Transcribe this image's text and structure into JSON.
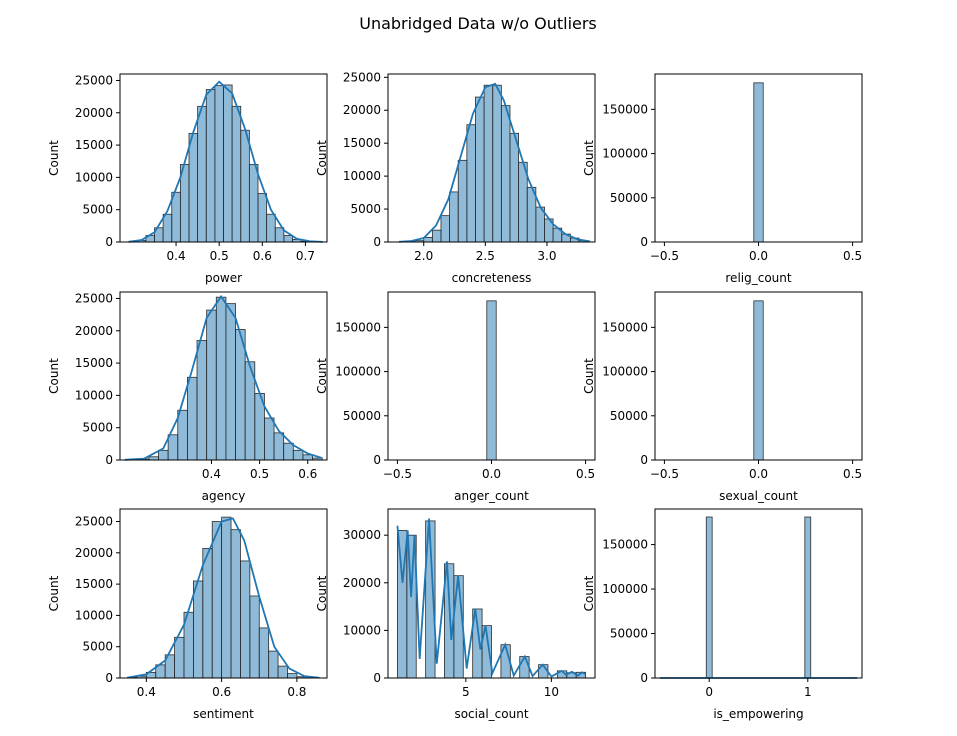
{
  "title": "Unabridged Data w/o Outliers",
  "chart_data": [
    {
      "type": "histogram",
      "xlabel": "power",
      "ylabel": "Count",
      "xlim": [
        0.27,
        0.75
      ],
      "ylim": [
        0,
        26000
      ],
      "xticks": [
        {
          "v": 0.4,
          "label": "0.4"
        },
        {
          "v": 0.5,
          "label": "0.5"
        },
        {
          "v": 0.6,
          "label": "0.6"
        },
        {
          "v": 0.7,
          "label": "0.7"
        }
      ],
      "yticks": [
        {
          "v": 0,
          "label": "0"
        },
        {
          "v": 5000,
          "label": "5000"
        },
        {
          "v": 10000,
          "label": "10000"
        },
        {
          "v": 15000,
          "label": "15000"
        },
        {
          "v": 20000,
          "label": "20000"
        },
        {
          "v": 25000,
          "label": "25000"
        }
      ],
      "bins": [
        [
          0.29,
          0.31,
          50
        ],
        [
          0.31,
          0.33,
          250
        ],
        [
          0.33,
          0.35,
          1000
        ],
        [
          0.35,
          0.37,
          2200
        ],
        [
          0.37,
          0.39,
          4300
        ],
        [
          0.39,
          0.41,
          7700
        ],
        [
          0.41,
          0.43,
          12000
        ],
        [
          0.43,
          0.45,
          16800
        ],
        [
          0.45,
          0.47,
          21000
        ],
        [
          0.47,
          0.49,
          23600
        ],
        [
          0.49,
          0.51,
          24200
        ],
        [
          0.51,
          0.53,
          24300
        ],
        [
          0.53,
          0.55,
          21000
        ],
        [
          0.55,
          0.57,
          17300
        ],
        [
          0.57,
          0.59,
          12000
        ],
        [
          0.59,
          0.61,
          7500
        ],
        [
          0.61,
          0.63,
          4300
        ],
        [
          0.63,
          0.65,
          2200
        ],
        [
          0.65,
          0.67,
          1000
        ],
        [
          0.67,
          0.69,
          400
        ],
        [
          0.69,
          0.71,
          100
        ],
        [
          0.71,
          0.73,
          30
        ]
      ],
      "kde": [
        [
          0.29,
          30
        ],
        [
          0.32,
          300
        ],
        [
          0.35,
          1500
        ],
        [
          0.38,
          4800
        ],
        [
          0.41,
          10000
        ],
        [
          0.44,
          17000
        ],
        [
          0.47,
          22800
        ],
        [
          0.5,
          24800
        ],
        [
          0.53,
          23000
        ],
        [
          0.56,
          17500
        ],
        [
          0.59,
          10500
        ],
        [
          0.62,
          5000
        ],
        [
          0.65,
          1800
        ],
        [
          0.68,
          500
        ],
        [
          0.71,
          120
        ],
        [
          0.74,
          20
        ]
      ]
    },
    {
      "type": "histogram",
      "xlabel": "concreteness",
      "ylabel": "Count",
      "xlim": [
        1.71,
        3.39
      ],
      "ylim": [
        0,
        25500
      ],
      "xticks": [
        {
          "v": 2.0,
          "label": "2.0"
        },
        {
          "v": 2.5,
          "label": "2.5"
        },
        {
          "v": 3.0,
          "label": "3.0"
        }
      ],
      "yticks": [
        {
          "v": 0,
          "label": "0"
        },
        {
          "v": 5000,
          "label": "5000"
        },
        {
          "v": 10000,
          "label": "10000"
        },
        {
          "v": 15000,
          "label": "15000"
        },
        {
          "v": 20000,
          "label": "20000"
        },
        {
          "v": 25000,
          "label": "25000"
        }
      ],
      "bins": [
        [
          1.86,
          1.93,
          50
        ],
        [
          1.93,
          2.0,
          200
        ],
        [
          2.0,
          2.07,
          700
        ],
        [
          2.07,
          2.14,
          1800
        ],
        [
          2.14,
          2.21,
          4000
        ],
        [
          2.21,
          2.28,
          7600
        ],
        [
          2.28,
          2.35,
          12400
        ],
        [
          2.35,
          2.42,
          17800
        ],
        [
          2.42,
          2.49,
          22000
        ],
        [
          2.49,
          2.56,
          23800
        ],
        [
          2.56,
          2.63,
          23800
        ],
        [
          2.63,
          2.7,
          20700
        ],
        [
          2.7,
          2.77,
          16500
        ],
        [
          2.77,
          2.84,
          12100
        ],
        [
          2.84,
          2.91,
          8300
        ],
        [
          2.91,
          2.98,
          5300
        ],
        [
          2.98,
          3.05,
          3500
        ],
        [
          3.05,
          3.12,
          2100
        ],
        [
          3.12,
          3.19,
          1200
        ],
        [
          3.19,
          3.26,
          600
        ],
        [
          3.26,
          3.33,
          200
        ]
      ],
      "kde": [
        [
          1.8,
          30
        ],
        [
          1.9,
          150
        ],
        [
          2.0,
          600
        ],
        [
          2.1,
          2500
        ],
        [
          2.2,
          6500
        ],
        [
          2.3,
          13000
        ],
        [
          2.4,
          19500
        ],
        [
          2.5,
          23500
        ],
        [
          2.58,
          24000
        ],
        [
          2.65,
          21500
        ],
        [
          2.75,
          15500
        ],
        [
          2.85,
          9500
        ],
        [
          2.95,
          5200
        ],
        [
          3.05,
          2700
        ],
        [
          3.15,
          1200
        ],
        [
          3.25,
          400
        ],
        [
          3.35,
          100
        ]
      ]
    },
    {
      "type": "histogram",
      "xlabel": "relig_count",
      "ylabel": "Count",
      "xlim": [
        -0.55,
        0.55
      ],
      "ylim": [
        0,
        190000
      ],
      "xticks": [
        {
          "v": -0.5,
          "label": "−0.5"
        },
        {
          "v": 0.0,
          "label": "0.0"
        },
        {
          "v": 0.5,
          "label": "0.5"
        }
      ],
      "yticks": [
        {
          "v": 0,
          "label": "0"
        },
        {
          "v": 50000,
          "label": "50000"
        },
        {
          "v": 100000,
          "label": "100000"
        },
        {
          "v": 150000,
          "label": "150000"
        }
      ],
      "bins": [
        [
          -0.025,
          0.025,
          180000
        ]
      ],
      "kde": []
    },
    {
      "type": "histogram",
      "xlabel": "agency",
      "ylabel": "Count",
      "xlim": [
        0.21,
        0.64
      ],
      "ylim": [
        0,
        26000
      ],
      "xticks": [
        {
          "v": 0.4,
          "label": "0.4"
        },
        {
          "v": 0.5,
          "label": "0.5"
        },
        {
          "v": 0.6,
          "label": "0.6"
        }
      ],
      "yticks": [
        {
          "v": 0,
          "label": "0"
        },
        {
          "v": 5000,
          "label": "5000"
        },
        {
          "v": 10000,
          "label": "10000"
        },
        {
          "v": 15000,
          "label": "15000"
        },
        {
          "v": 20000,
          "label": "20000"
        },
        {
          "v": 25000,
          "label": "25000"
        }
      ],
      "bins": [
        [
          0.23,
          0.25,
          50
        ],
        [
          0.25,
          0.27,
          150
        ],
        [
          0.27,
          0.29,
          500
        ],
        [
          0.29,
          0.31,
          1500
        ],
        [
          0.31,
          0.33,
          3900
        ],
        [
          0.33,
          0.35,
          7700
        ],
        [
          0.35,
          0.37,
          12800
        ],
        [
          0.37,
          0.39,
          18500
        ],
        [
          0.39,
          0.41,
          23200
        ],
        [
          0.41,
          0.43,
          25200
        ],
        [
          0.43,
          0.45,
          24200
        ],
        [
          0.45,
          0.47,
          20200
        ],
        [
          0.47,
          0.49,
          15200
        ],
        [
          0.49,
          0.51,
          10300
        ],
        [
          0.51,
          0.53,
          6500
        ],
        [
          0.53,
          0.55,
          4200
        ],
        [
          0.55,
          0.57,
          2600
        ],
        [
          0.57,
          0.59,
          1500
        ],
        [
          0.59,
          0.61,
          800
        ],
        [
          0.61,
          0.63,
          300
        ]
      ],
      "kde": [
        [
          0.22,
          30
        ],
        [
          0.26,
          200
        ],
        [
          0.3,
          1800
        ],
        [
          0.33,
          6500
        ],
        [
          0.36,
          14000
        ],
        [
          0.39,
          22000
        ],
        [
          0.42,
          25300
        ],
        [
          0.45,
          22000
        ],
        [
          0.48,
          14500
        ],
        [
          0.51,
          8300
        ],
        [
          0.54,
          4500
        ],
        [
          0.57,
          2300
        ],
        [
          0.6,
          1000
        ],
        [
          0.63,
          300
        ]
      ]
    },
    {
      "type": "histogram",
      "xlabel": "anger_count",
      "ylabel": "Count",
      "xlim": [
        -0.55,
        0.55
      ],
      "ylim": [
        0,
        190000
      ],
      "xticks": [
        {
          "v": -0.5,
          "label": "−0.5"
        },
        {
          "v": 0.0,
          "label": "0.0"
        },
        {
          "v": 0.5,
          "label": "0.5"
        }
      ],
      "yticks": [
        {
          "v": 0,
          "label": "0"
        },
        {
          "v": 50000,
          "label": "50000"
        },
        {
          "v": 100000,
          "label": "100000"
        },
        {
          "v": 150000,
          "label": "150000"
        }
      ],
      "bins": [
        [
          -0.025,
          0.025,
          180000
        ]
      ],
      "kde": []
    },
    {
      "type": "histogram",
      "xlabel": "sexual_count",
      "ylabel": "Count",
      "xlim": [
        -0.55,
        0.55
      ],
      "ylim": [
        0,
        190000
      ],
      "xticks": [
        {
          "v": -0.5,
          "label": "−0.5"
        },
        {
          "v": 0.0,
          "label": "0.0"
        },
        {
          "v": 0.5,
          "label": "0.5"
        }
      ],
      "yticks": [
        {
          "v": 0,
          "label": "0"
        },
        {
          "v": 50000,
          "label": "50000"
        },
        {
          "v": 100000,
          "label": "100000"
        },
        {
          "v": 150000,
          "label": "150000"
        }
      ],
      "bins": [
        [
          -0.025,
          0.025,
          180000
        ]
      ],
      "kde": []
    },
    {
      "type": "histogram",
      "xlabel": "sentiment",
      "ylabel": "Count",
      "xlim": [
        0.33,
        0.88
      ],
      "ylim": [
        0,
        27000
      ],
      "xticks": [
        {
          "v": 0.4,
          "label": "0.4"
        },
        {
          "v": 0.6,
          "label": "0.6"
        },
        {
          "v": 0.8,
          "label": "0.8"
        }
      ],
      "yticks": [
        {
          "v": 0,
          "label": "0"
        },
        {
          "v": 5000,
          "label": "5000"
        },
        {
          "v": 10000,
          "label": "10000"
        },
        {
          "v": 15000,
          "label": "15000"
        },
        {
          "v": 20000,
          "label": "20000"
        },
        {
          "v": 25000,
          "label": "25000"
        }
      ],
      "bins": [
        [
          0.35,
          0.375,
          100
        ],
        [
          0.375,
          0.4,
          300
        ],
        [
          0.4,
          0.425,
          900
        ],
        [
          0.425,
          0.45,
          2100
        ],
        [
          0.45,
          0.475,
          3700
        ],
        [
          0.475,
          0.5,
          6500
        ],
        [
          0.5,
          0.525,
          10500
        ],
        [
          0.525,
          0.55,
          15500
        ],
        [
          0.55,
          0.575,
          20700
        ],
        [
          0.575,
          0.6,
          25000
        ],
        [
          0.6,
          0.625,
          25700
        ],
        [
          0.625,
          0.65,
          23700
        ],
        [
          0.65,
          0.675,
          18700
        ],
        [
          0.675,
          0.7,
          13100
        ],
        [
          0.7,
          0.725,
          8000
        ],
        [
          0.725,
          0.75,
          4300
        ],
        [
          0.75,
          0.775,
          1900
        ],
        [
          0.775,
          0.8,
          700
        ],
        [
          0.8,
          0.825,
          200
        ],
        [
          0.825,
          0.85,
          50
        ]
      ],
      "kde": [
        [
          0.35,
          50
        ],
        [
          0.4,
          600
        ],
        [
          0.45,
          2800
        ],
        [
          0.5,
          8500
        ],
        [
          0.55,
          18000
        ],
        [
          0.6,
          25000
        ],
        [
          0.63,
          25500
        ],
        [
          0.66,
          22000
        ],
        [
          0.7,
          13000
        ],
        [
          0.74,
          5000
        ],
        [
          0.78,
          1500
        ],
        [
          0.82,
          300
        ],
        [
          0.86,
          40
        ]
      ]
    },
    {
      "type": "histogram",
      "xlabel": "social_count",
      "ylabel": "Count",
      "xlim": [
        0.45,
        12.55
      ],
      "ylim": [
        0,
        35500
      ],
      "xticks": [
        {
          "v": 5,
          "label": "5"
        },
        {
          "v": 10,
          "label": "10"
        }
      ],
      "yticks": [
        {
          "v": 0,
          "label": "0"
        },
        {
          "v": 10000,
          "label": "10000"
        },
        {
          "v": 20000,
          "label": "20000"
        },
        {
          "v": 30000,
          "label": "30000"
        }
      ],
      "bins": [
        [
          1.0,
          1.55,
          31000
        ],
        [
          1.55,
          2.1,
          30000
        ],
        [
          2.65,
          3.2,
          33000
        ],
        [
          3.75,
          4.3,
          24000
        ],
        [
          4.3,
          4.85,
          21500
        ],
        [
          5.4,
          5.95,
          14500
        ],
        [
          5.95,
          6.5,
          11000
        ],
        [
          7.05,
          7.6,
          7000
        ],
        [
          8.15,
          8.7,
          4500
        ],
        [
          9.25,
          9.8,
          2800
        ],
        [
          10.35,
          10.9,
          1500
        ],
        [
          10.9,
          11.45,
          1100
        ],
        [
          11.45,
          12.0,
          1200
        ]
      ],
      "kde": [
        [
          1.0,
          32000
        ],
        [
          1.3,
          20000
        ],
        [
          1.6,
          31000
        ],
        [
          1.8,
          17000
        ],
        [
          2.0,
          30000
        ],
        [
          2.3,
          4000
        ],
        [
          2.85,
          33500
        ],
        [
          3.3,
          3000
        ],
        [
          3.9,
          24500
        ],
        [
          4.15,
          8000
        ],
        [
          4.55,
          21500
        ],
        [
          5.05,
          2000
        ],
        [
          5.55,
          14500
        ],
        [
          5.85,
          6000
        ],
        [
          6.15,
          11000
        ],
        [
          6.55,
          1000
        ],
        [
          7.3,
          7000
        ],
        [
          7.8,
          500
        ],
        [
          8.45,
          4500
        ],
        [
          8.9,
          400
        ],
        [
          9.5,
          2800
        ],
        [
          10.0,
          300
        ],
        [
          10.6,
          1500
        ],
        [
          10.85,
          700
        ],
        [
          11.2,
          1300
        ],
        [
          11.55,
          500
        ],
        [
          11.8,
          1200
        ],
        [
          12.0,
          800
        ]
      ]
    },
    {
      "type": "histogram",
      "xlabel": "is_empowering",
      "ylabel": "Count",
      "xlim": [
        -0.55,
        1.55
      ],
      "ylim": [
        0,
        190000
      ],
      "xticks": [
        {
          "v": 0,
          "label": "0"
        },
        {
          "v": 1,
          "label": "1"
        }
      ],
      "yticks": [
        {
          "v": 0,
          "label": "0"
        },
        {
          "v": 50000,
          "label": "50000"
        },
        {
          "v": 100000,
          "label": "100000"
        },
        {
          "v": 150000,
          "label": "150000"
        }
      ],
      "bins": [
        [
          -0.03,
          0.03,
          181000
        ],
        [
          0.97,
          1.03,
          181000
        ]
      ],
      "kde": [
        [
          -0.5,
          0
        ],
        [
          1.5,
          0
        ]
      ]
    }
  ]
}
